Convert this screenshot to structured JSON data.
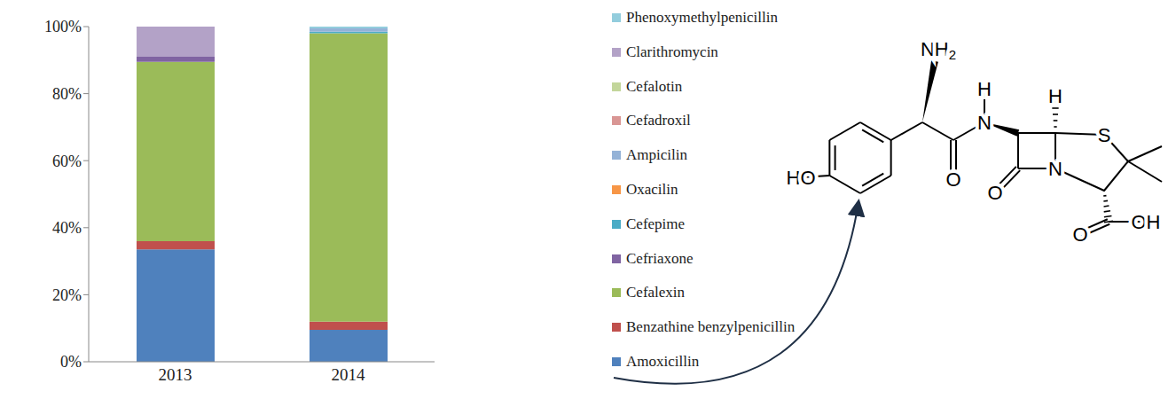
{
  "chart_data": {
    "type": "bar",
    "stacked": true,
    "legend": "right",
    "categories": [
      "2013",
      "2014"
    ],
    "ylim": [
      0,
      100
    ],
    "yticks": [
      {
        "value": 0,
        "label": "0%"
      },
      {
        "value": 20,
        "label": "20%"
      },
      {
        "value": 40,
        "label": "40%"
      },
      {
        "value": 60,
        "label": "60%"
      },
      {
        "value": 80,
        "label": "80%"
      },
      {
        "value": 100,
        "label": "100%"
      }
    ],
    "series": [
      {
        "name": "Amoxicillin",
        "color": "#4f81bd",
        "values": [
          33.5,
          9.5
        ]
      },
      {
        "name": "Benzathine benzylpenicillin",
        "color": "#c0504d",
        "values": [
          2.5,
          2.5
        ]
      },
      {
        "name": "Cefalexin",
        "color": "#9bbb59",
        "values": [
          53.5,
          86
        ]
      },
      {
        "name": "Cefriaxone",
        "color": "#8064a2",
        "values": [
          1.5,
          0
        ]
      },
      {
        "name": "Cefepime",
        "color": "#4bacc6",
        "values": [
          0,
          0.5
        ]
      },
      {
        "name": "Oxacilin",
        "color": "#f79646",
        "values": [
          0,
          0
        ]
      },
      {
        "name": "Ampicilin",
        "color": "#95b3d7",
        "values": [
          0,
          1
        ]
      },
      {
        "name": "Cefadroxil",
        "color": "#d99694",
        "values": [
          0,
          0
        ]
      },
      {
        "name": "Cefalotin",
        "color": "#c3d69b",
        "values": [
          0,
          0
        ]
      },
      {
        "name": "Clarithromycin",
        "color": "#b3a2c7",
        "values": [
          9,
          0
        ]
      },
      {
        "name": "Phenoxymethylpenicillin",
        "color": "#93cddd",
        "values": [
          0,
          0.5
        ]
      }
    ]
  },
  "molecule": {
    "labels": [
      "NH2",
      "H",
      "N",
      "H",
      "S",
      "HO",
      "O",
      "N",
      "O",
      "O",
      "OH"
    ]
  }
}
